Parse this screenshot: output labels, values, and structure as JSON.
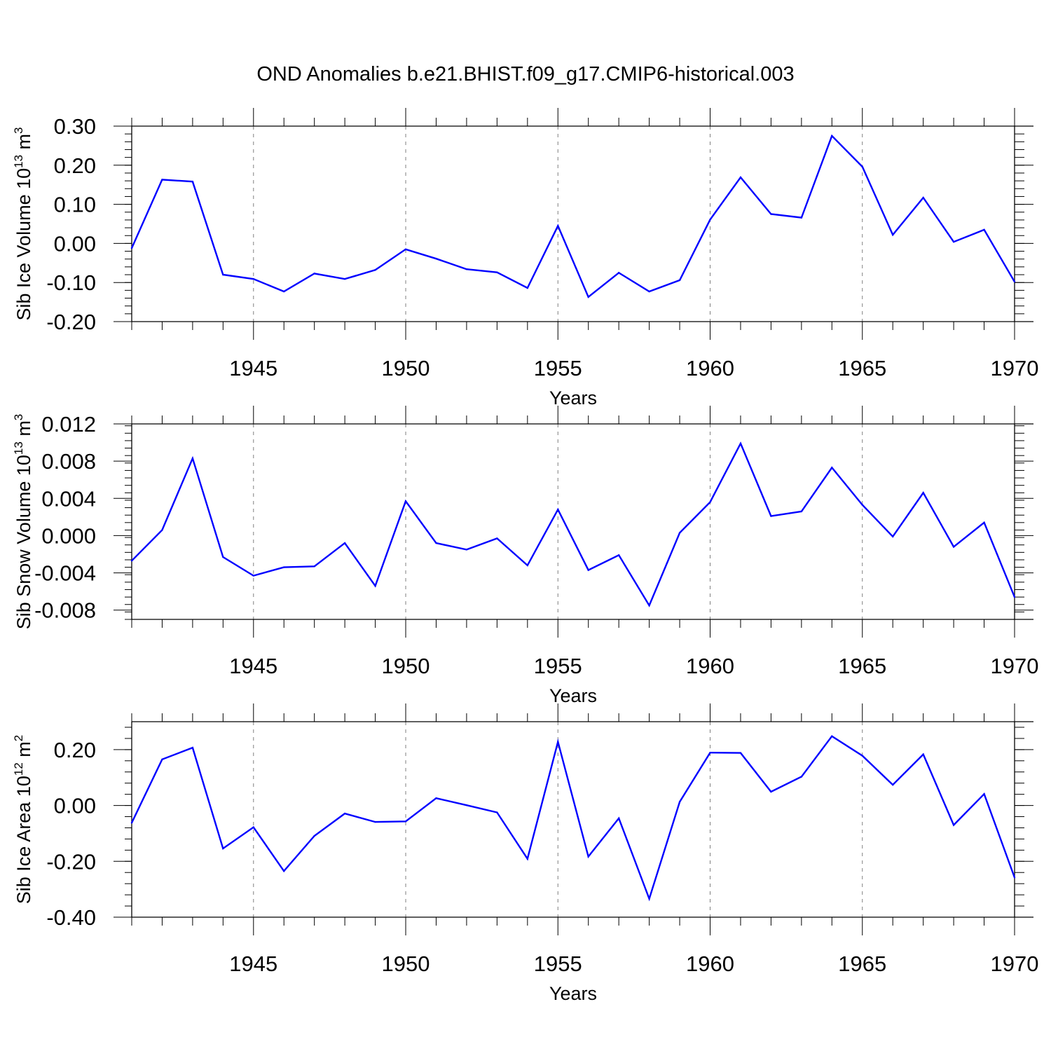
{
  "title": "OND Anomalies b.e21.BHIST.f09_g17.CMIP6-historical.003",
  "colors": {
    "line": "#0000ff",
    "axis": "#000000",
    "grid": "#7f7f7f"
  },
  "chart_data": [
    {
      "type": "line",
      "xlabel": "Years",
      "ylabel_main": "Sib Ice Volume 10",
      "ylabel_exp": "13",
      "ylabel_unit": " m",
      "ylabel_unit_exp": "3",
      "xlim": [
        1941,
        1970
      ],
      "ylim": [
        -0.2,
        0.3
      ],
      "xticks": [
        1945,
        1950,
        1955,
        1960,
        1965,
        1970
      ],
      "xtick_labels": [
        "1945",
        "1950",
        "1955",
        "1960",
        "1965",
        "1970"
      ],
      "yticks": [
        -0.2,
        -0.1,
        0.0,
        0.1,
        0.2,
        0.3
      ],
      "ytick_labels": [
        "-0.20",
        "-0.10",
        "0.00",
        "0.10",
        "0.20",
        "0.30"
      ],
      "grid": "vertical dashed at major x ticks",
      "x": [
        1941,
        1942,
        1943,
        1944,
        1945,
        1946,
        1947,
        1948,
        1949,
        1950,
        1951,
        1952,
        1953,
        1954,
        1955,
        1956,
        1957,
        1958,
        1959,
        1960,
        1961,
        1962,
        1963,
        1964,
        1965,
        1966,
        1967,
        1968,
        1969,
        1970
      ],
      "y": [
        -0.012,
        0.163,
        0.158,
        -0.08,
        -0.091,
        -0.123,
        -0.077,
        -0.091,
        -0.068,
        -0.015,
        -0.039,
        -0.066,
        -0.074,
        -0.114,
        0.045,
        -0.137,
        -0.075,
        -0.123,
        -0.094,
        0.061,
        0.169,
        0.075,
        0.066,
        0.275,
        0.196,
        0.022,
        0.117,
        0.004,
        0.035,
        -0.098
      ]
    },
    {
      "type": "line",
      "xlabel": "Years",
      "ylabel_main": "Sib Snow Volume 10",
      "ylabel_exp": "13",
      "ylabel_unit": " m",
      "ylabel_unit_exp": "3",
      "xlim": [
        1941,
        1970
      ],
      "ylim": [
        -0.009,
        0.012
      ],
      "xticks": [
        1945,
        1950,
        1955,
        1960,
        1965,
        1970
      ],
      "xtick_labels": [
        "1945",
        "1950",
        "1955",
        "1960",
        "1965",
        "1970"
      ],
      "yticks": [
        -0.008,
        -0.004,
        0.0,
        0.004,
        0.008,
        0.012
      ],
      "ytick_labels": [
        "-0.008",
        "-0.004",
        "0.000",
        "0.004",
        "0.008",
        "0.012"
      ],
      "grid": "vertical dashed at major x ticks",
      "x": [
        1941,
        1942,
        1943,
        1944,
        1945,
        1946,
        1947,
        1948,
        1949,
        1950,
        1951,
        1952,
        1953,
        1954,
        1955,
        1956,
        1957,
        1958,
        1959,
        1960,
        1961,
        1962,
        1963,
        1964,
        1965,
        1966,
        1967,
        1968,
        1969,
        1970
      ],
      "y": [
        -0.0027,
        0.0006,
        0.0083,
        -0.0023,
        -0.0043,
        -0.0034,
        -0.0033,
        -0.0008,
        -0.0054,
        0.0037,
        -0.0008,
        -0.0015,
        -0.0003,
        -0.0032,
        0.0028,
        -0.0037,
        -0.0021,
        -0.0075,
        0.0003,
        0.0036,
        0.0099,
        0.0021,
        0.0026,
        0.0073,
        0.0033,
        -0.0001,
        0.0046,
        -0.0012,
        0.0014,
        -0.0066
      ]
    },
    {
      "type": "line",
      "xlabel": "Years",
      "ylabel_main": "Sib Ice Area 10",
      "ylabel_exp": "12",
      "ylabel_unit": " m",
      "ylabel_unit_exp": "2",
      "xlim": [
        1941,
        1970
      ],
      "ylim": [
        -0.4,
        0.3
      ],
      "xticks": [
        1945,
        1950,
        1955,
        1960,
        1965,
        1970
      ],
      "xtick_labels": [
        "1945",
        "1950",
        "1955",
        "1960",
        "1965",
        "1970"
      ],
      "yticks": [
        -0.4,
        -0.2,
        0.0,
        0.2
      ],
      "ytick_labels": [
        "-0.40",
        "-0.20",
        "0.00",
        "0.20"
      ],
      "grid": "vertical dashed at major x ticks",
      "x": [
        1941,
        1942,
        1943,
        1944,
        1945,
        1946,
        1947,
        1948,
        1949,
        1950,
        1951,
        1952,
        1953,
        1954,
        1955,
        1956,
        1957,
        1958,
        1959,
        1960,
        1961,
        1962,
        1963,
        1964,
        1965,
        1966,
        1967,
        1968,
        1969,
        1970
      ],
      "y": [
        -0.062,
        0.165,
        0.207,
        -0.154,
        -0.078,
        -0.235,
        -0.109,
        -0.029,
        -0.059,
        -0.057,
        0.026,
        0.001,
        -0.025,
        -0.191,
        0.228,
        -0.183,
        -0.046,
        -0.334,
        0.013,
        0.189,
        0.188,
        0.049,
        0.103,
        0.248,
        0.178,
        0.074,
        0.183,
        -0.07,
        0.041,
        -0.258
      ]
    }
  ]
}
